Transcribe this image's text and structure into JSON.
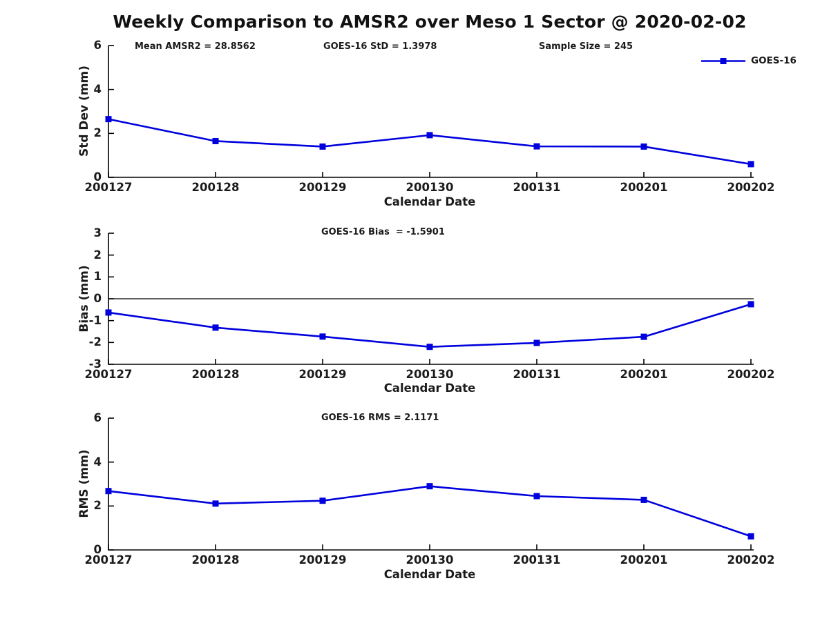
{
  "title": "Weekly Comparison to AMSR2 over Meso 1 Sector @ 2020-02-02",
  "legend": {
    "label": "GOES-16"
  },
  "chart_data": {
    "type": "line",
    "series_color": "#0000dd",
    "marker": "square",
    "categories": [
      "200127",
      "200128",
      "200129",
      "200130",
      "200131",
      "200201",
      "200202"
    ],
    "xlabel": "Calendar Date",
    "legend_position": "top-right",
    "grid": false,
    "charts": [
      {
        "name": "std-dev",
        "ylabel": "Std Dev (mm)",
        "ylim": [
          0,
          6
        ],
        "yticks": [
          0,
          2,
          4,
          6
        ],
        "zero_line": false,
        "annotations": [
          "Mean AMSR2 = 28.8562",
          "GOES-16 StD = 1.3978",
          "Sample Size = 245"
        ],
        "series": [
          {
            "name": "GOES-16",
            "values": [
              2.65,
              1.65,
              1.4,
              1.92,
              1.41,
              1.4,
              0.6
            ]
          }
        ]
      },
      {
        "name": "bias",
        "ylabel": "Bias (mm)",
        "ylim": [
          -3,
          3
        ],
        "yticks": [
          3,
          2,
          1,
          0,
          -1,
          -2,
          -3
        ],
        "zero_line": true,
        "annotations": [
          "GOES-16 Bias  = -1.5901"
        ],
        "series": [
          {
            "name": "GOES-16",
            "values": [
              -0.63,
              -1.32,
              -1.73,
              -2.2,
              -2.02,
              -1.74,
              -0.25
            ]
          }
        ]
      },
      {
        "name": "rms",
        "ylabel": "RMS (mm)",
        "ylim": [
          0,
          6
        ],
        "yticks": [
          0,
          2,
          4,
          6
        ],
        "zero_line": false,
        "annotations": [
          "GOES-16 RMS = 2.1171"
        ],
        "series": [
          {
            "name": "GOES-16",
            "values": [
              2.68,
              2.11,
              2.24,
              2.9,
              2.45,
              2.28,
              0.62
            ]
          }
        ]
      }
    ]
  }
}
